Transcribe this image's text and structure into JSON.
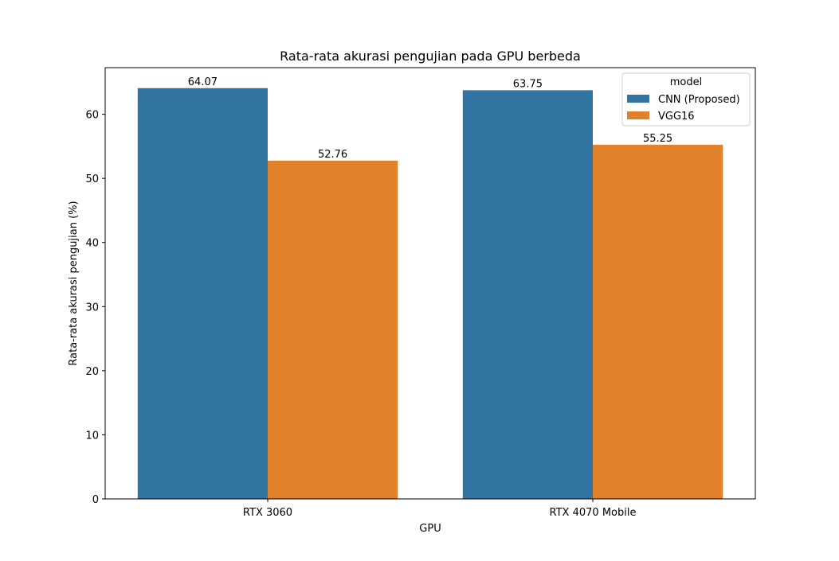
{
  "chart_data": {
    "type": "bar",
    "title": "Rata-rata akurasi pengujian pada GPU berbeda",
    "xlabel": "GPU",
    "ylabel": "Rata-rata akurasi pengujian (%)",
    "categories": [
      "RTX 3060",
      "RTX 4070 Mobile"
    ],
    "series": [
      {
        "name": "CNN (Proposed)",
        "values": [
          64.07,
          63.75
        ],
        "color": "#3274a1"
      },
      {
        "name": "VGG16",
        "values": [
          52.76,
          55.25
        ],
        "color": "#e1812c"
      }
    ],
    "data_labels": [
      [
        "64.07",
        "63.75"
      ],
      [
        "52.76",
        "55.25"
      ]
    ],
    "ylim": [
      0,
      67.27
    ],
    "yticks": [
      0,
      10,
      20,
      30,
      40,
      50,
      60
    ],
    "grid": false,
    "legend": {
      "title": "model",
      "position": "top-right"
    }
  }
}
